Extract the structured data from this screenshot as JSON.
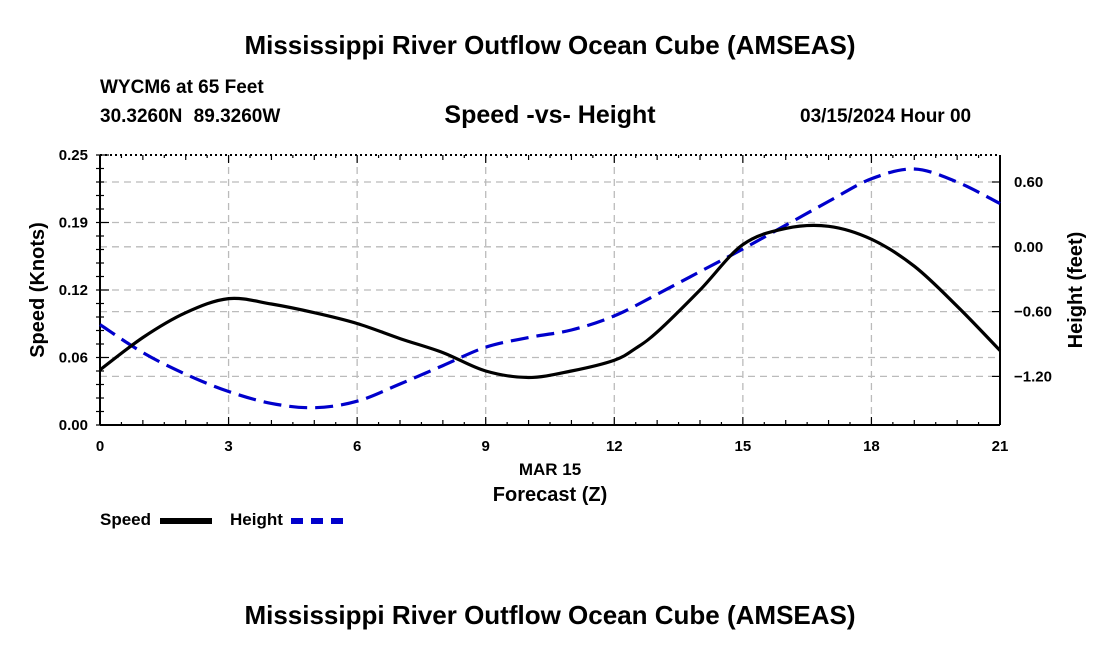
{
  "header": {
    "title": "Mississippi River Outflow Ocean Cube (AMSEAS)",
    "station": "WYCM6 at 65 Feet",
    "coords": "30.3260N 89.3260W",
    "subtitle": "Speed -vs- Height",
    "datetime": "03/15/2024 Hour 00"
  },
  "footer": {
    "title": "Mississippi River Outflow Ocean Cube (AMSEAS)"
  },
  "legend": {
    "speed_label": "Speed",
    "height_label": "Height"
  },
  "colors": {
    "speed": "#000000",
    "height": "#0000cc",
    "grid": "#bbbbbb"
  },
  "chart_data": {
    "type": "line",
    "title": "Speed -vs- Height",
    "xlabel": "Forecast (Z)",
    "date_label": "MAR 15",
    "xlim": [
      0,
      21
    ],
    "x_ticks": [
      0,
      3,
      6,
      9,
      12,
      15,
      18,
      21
    ],
    "x_tick_labels": [
      "0",
      "3",
      "6",
      "9",
      "12",
      "15",
      "18",
      "21"
    ],
    "ylabel": "Speed (Knots)",
    "ylim": [
      0,
      0.25
    ],
    "y_ticks": [
      0,
      0.0625,
      0.125,
      0.1875,
      0.25
    ],
    "y_tick_labels": [
      "0.00",
      "0.06",
      "0.12",
      "0.19",
      "0.25"
    ],
    "y2label": "Height (feet)",
    "y2lim": [
      -1.65,
      0.85
    ],
    "y2_ticks": [
      -1.2,
      -0.6,
      0.0,
      0.6
    ],
    "y2_tick_labels": [
      "−1.20",
      "−0.60",
      "0.00",
      "0.60"
    ],
    "grid": true,
    "legend_position": "bottom-left",
    "series": [
      {
        "name": "Speed",
        "axis": "left",
        "style": "solid",
        "x": [
          0,
          1,
          2,
          3,
          4,
          5,
          6,
          7,
          8,
          9,
          10,
          11,
          12,
          12.5,
          13,
          14,
          15,
          16,
          17,
          18,
          19,
          20,
          21
        ],
        "values": [
          0.051,
          0.081,
          0.104,
          0.117,
          0.112,
          0.104,
          0.094,
          0.08,
          0.067,
          0.05,
          0.044,
          0.05,
          0.06,
          0.071,
          0.086,
          0.125,
          0.167,
          0.182,
          0.184,
          0.172,
          0.147,
          0.11,
          0.069
        ]
      },
      {
        "name": "Height",
        "axis": "right",
        "style": "dashed",
        "x": [
          0,
          1,
          2,
          3,
          4,
          5,
          6,
          7,
          8,
          9,
          10,
          11,
          12,
          13,
          14,
          15,
          16,
          17,
          18,
          19,
          20,
          21
        ],
        "values": [
          -0.72,
          -0.98,
          -1.18,
          -1.34,
          -1.45,
          -1.49,
          -1.43,
          -1.27,
          -1.1,
          -0.93,
          -0.84,
          -0.77,
          -0.64,
          -0.44,
          -0.23,
          -0.02,
          0.2,
          0.42,
          0.63,
          0.72,
          0.6,
          0.4
        ]
      }
    ]
  }
}
